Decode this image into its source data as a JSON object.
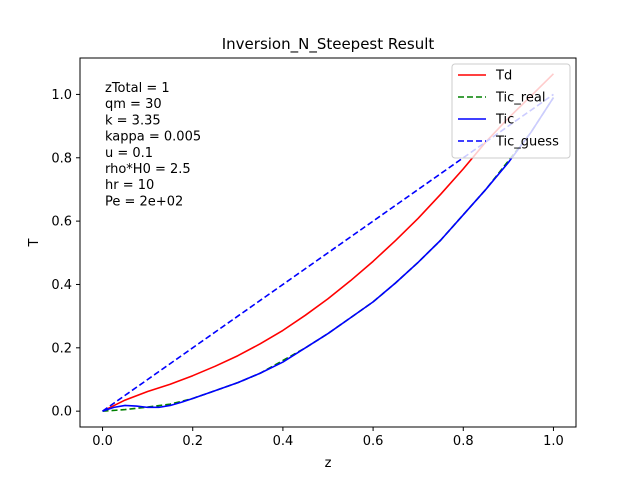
{
  "chart_data": {
    "type": "line",
    "title": "Inversion_N_Steepest Result",
    "xlabel": "z",
    "ylabel": "T",
    "xlim": [
      -0.05,
      1.05
    ],
    "ylim": [
      -0.05,
      1.115
    ],
    "xticks": [
      0.0,
      0.2,
      0.4,
      0.6,
      0.8,
      1.0
    ],
    "xtick_labels": [
      "0.0",
      "0.2",
      "0.4",
      "0.6",
      "0.8",
      "1.0"
    ],
    "yticks": [
      0.0,
      0.2,
      0.4,
      0.6,
      0.8,
      1.0
    ],
    "ytick_labels": [
      "0.0",
      "0.2",
      "0.4",
      "0.6",
      "0.8",
      "1.0"
    ],
    "grid": false,
    "legend_position": "top-right",
    "annotation_lines": [
      "zTotal = 1",
      "qm = 30",
      "k = 3.35",
      "kappa = 0.005",
      "u = 0.1",
      "rho*H0 = 2.5",
      "hr = 10",
      "Pe = 2e+02"
    ],
    "series": [
      {
        "name": "Td",
        "color": "#ff0000",
        "dash": "solid",
        "x": [
          0.0,
          0.05,
          0.1,
          0.15,
          0.2,
          0.25,
          0.3,
          0.35,
          0.4,
          0.45,
          0.5,
          0.55,
          0.6,
          0.65,
          0.7,
          0.75,
          0.8,
          0.85,
          0.9,
          0.95,
          1.0
        ],
        "y": [
          0.0,
          0.035,
          0.062,
          0.085,
          0.112,
          0.142,
          0.175,
          0.213,
          0.255,
          0.303,
          0.355,
          0.412,
          0.473,
          0.539,
          0.609,
          0.685,
          0.765,
          0.85,
          0.925,
          0.995,
          1.065
        ]
      },
      {
        "name": "Tic_real",
        "color": "#008000",
        "dash": "dashed",
        "x": [
          0.0,
          0.05,
          0.1,
          0.15,
          0.2,
          0.25,
          0.3,
          0.35,
          0.4,
          0.45,
          0.5,
          0.55,
          0.6,
          0.65,
          0.7,
          0.75,
          0.8,
          0.85,
          0.9,
          0.95,
          1.0
        ],
        "y": [
          0.0,
          0.005,
          0.013,
          0.022,
          0.04,
          0.065,
          0.09,
          0.12,
          0.16,
          0.2,
          0.245,
          0.295,
          0.345,
          0.405,
          0.47,
          0.54,
          0.62,
          0.7,
          0.79,
          0.88,
          0.99
        ]
      },
      {
        "name": "Tic",
        "color": "#0000ff",
        "dash": "solid",
        "x": [
          0.0,
          0.025,
          0.05,
          0.075,
          0.1,
          0.125,
          0.15,
          0.175,
          0.2,
          0.25,
          0.3,
          0.35,
          0.4,
          0.45,
          0.5,
          0.55,
          0.6,
          0.65,
          0.7,
          0.75,
          0.8,
          0.85,
          0.9,
          0.95,
          1.0
        ],
        "y": [
          0.0,
          0.012,
          0.018,
          0.016,
          0.012,
          0.012,
          0.018,
          0.028,
          0.04,
          0.065,
          0.09,
          0.12,
          0.155,
          0.2,
          0.245,
          0.295,
          0.345,
          0.405,
          0.47,
          0.54,
          0.62,
          0.7,
          0.785,
          0.88,
          0.99
        ]
      },
      {
        "name": "Tic_guess",
        "color": "#0000ff",
        "dash": "dashed",
        "x": [
          0.0,
          1.0
        ],
        "y": [
          0.0,
          1.0
        ]
      }
    ]
  }
}
